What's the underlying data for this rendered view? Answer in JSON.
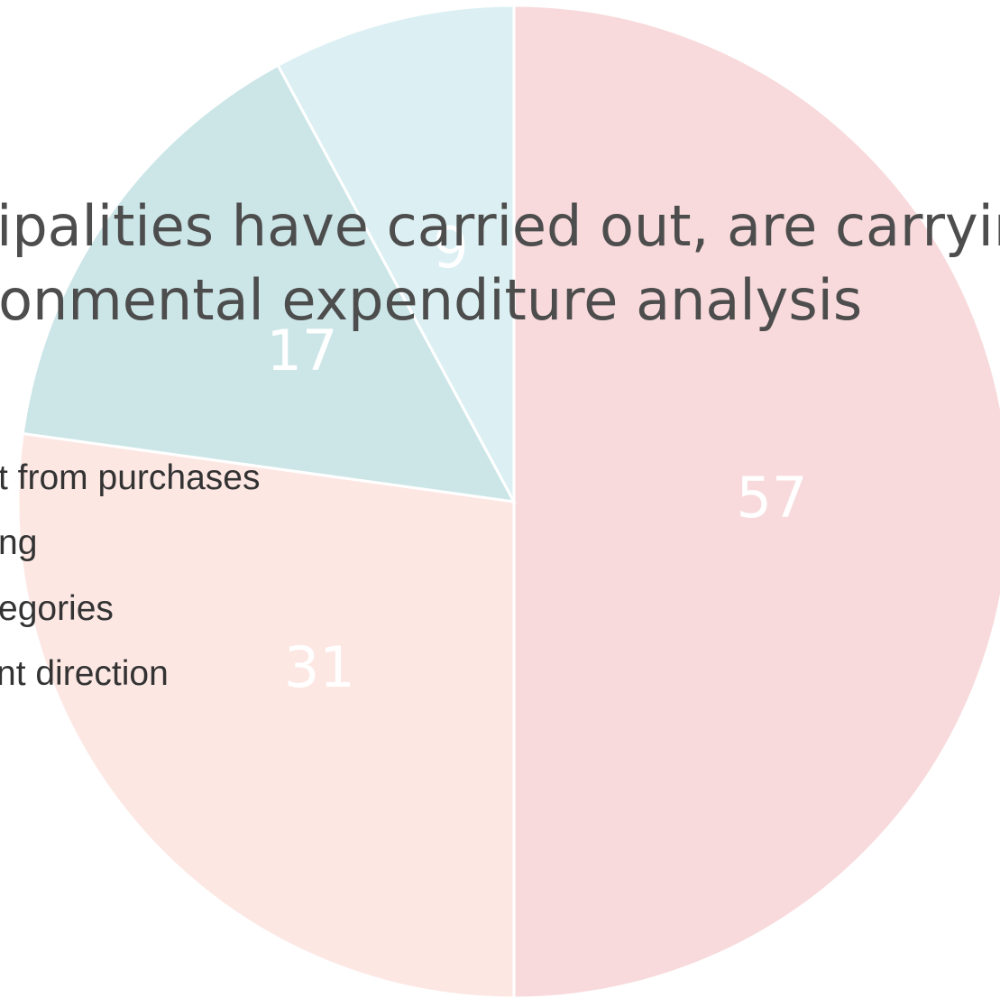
{
  "chart_data": {
    "type": "pie",
    "title_lines": [
      "cipalities have carried out, are carryin",
      "ronmental expenditure analysis"
    ],
    "slices": [
      {
        "value": 57,
        "label": "57",
        "color": "#f8dadc"
      },
      {
        "value": 31,
        "label": "31",
        "color": "#fce7e3"
      },
      {
        "value": 17,
        "label": "17",
        "color": "#cce6e8"
      },
      {
        "value": 9,
        "label": "9",
        "color": "#dcf0f3"
      }
    ],
    "legend": [
      "t from purchases",
      "ng",
      "egories",
      "nt direction"
    ],
    "start_angle_deg": 0,
    "direction": "clockwise"
  }
}
